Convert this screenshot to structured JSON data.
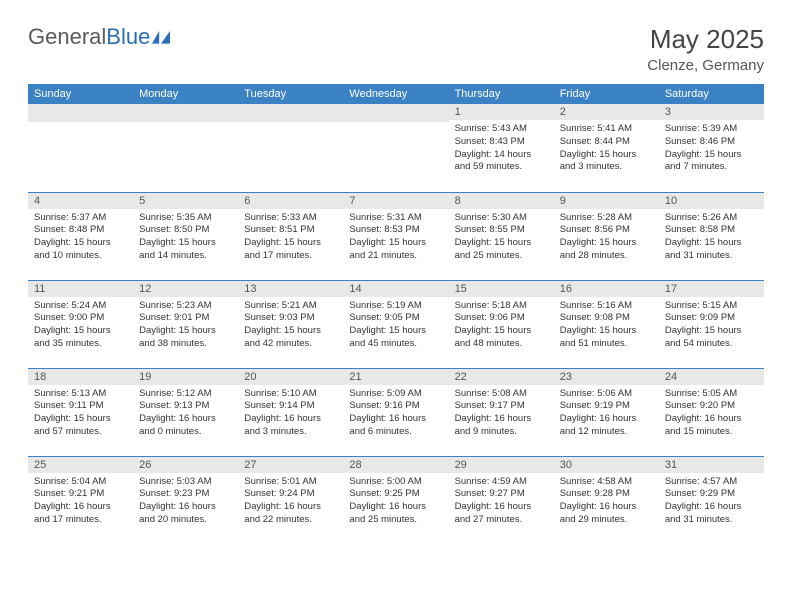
{
  "header": {
    "logo_g": "General",
    "logo_blue": "Blue",
    "month_title": "May 2025",
    "location": "Clenze, Germany"
  },
  "colors": {
    "header_bg": "#3b82c4",
    "header_text": "#ffffff",
    "daynum_bg": "#e8e8e8",
    "border": "#3b82c4",
    "logo_blue": "#2a6db8"
  },
  "day_labels": [
    "Sunday",
    "Monday",
    "Tuesday",
    "Wednesday",
    "Thursday",
    "Friday",
    "Saturday"
  ],
  "weeks": [
    [
      {
        "n": "",
        "sunrise": "",
        "sunset": "",
        "daylight": ""
      },
      {
        "n": "",
        "sunrise": "",
        "sunset": "",
        "daylight": ""
      },
      {
        "n": "",
        "sunrise": "",
        "sunset": "",
        "daylight": ""
      },
      {
        "n": "",
        "sunrise": "",
        "sunset": "",
        "daylight": ""
      },
      {
        "n": "1",
        "sunrise": "Sunrise: 5:43 AM",
        "sunset": "Sunset: 8:43 PM",
        "daylight": "Daylight: 14 hours and 59 minutes."
      },
      {
        "n": "2",
        "sunrise": "Sunrise: 5:41 AM",
        "sunset": "Sunset: 8:44 PM",
        "daylight": "Daylight: 15 hours and 3 minutes."
      },
      {
        "n": "3",
        "sunrise": "Sunrise: 5:39 AM",
        "sunset": "Sunset: 8:46 PM",
        "daylight": "Daylight: 15 hours and 7 minutes."
      }
    ],
    [
      {
        "n": "4",
        "sunrise": "Sunrise: 5:37 AM",
        "sunset": "Sunset: 8:48 PM",
        "daylight": "Daylight: 15 hours and 10 minutes."
      },
      {
        "n": "5",
        "sunrise": "Sunrise: 5:35 AM",
        "sunset": "Sunset: 8:50 PM",
        "daylight": "Daylight: 15 hours and 14 minutes."
      },
      {
        "n": "6",
        "sunrise": "Sunrise: 5:33 AM",
        "sunset": "Sunset: 8:51 PM",
        "daylight": "Daylight: 15 hours and 17 minutes."
      },
      {
        "n": "7",
        "sunrise": "Sunrise: 5:31 AM",
        "sunset": "Sunset: 8:53 PM",
        "daylight": "Daylight: 15 hours and 21 minutes."
      },
      {
        "n": "8",
        "sunrise": "Sunrise: 5:30 AM",
        "sunset": "Sunset: 8:55 PM",
        "daylight": "Daylight: 15 hours and 25 minutes."
      },
      {
        "n": "9",
        "sunrise": "Sunrise: 5:28 AM",
        "sunset": "Sunset: 8:56 PM",
        "daylight": "Daylight: 15 hours and 28 minutes."
      },
      {
        "n": "10",
        "sunrise": "Sunrise: 5:26 AM",
        "sunset": "Sunset: 8:58 PM",
        "daylight": "Daylight: 15 hours and 31 minutes."
      }
    ],
    [
      {
        "n": "11",
        "sunrise": "Sunrise: 5:24 AM",
        "sunset": "Sunset: 9:00 PM",
        "daylight": "Daylight: 15 hours and 35 minutes."
      },
      {
        "n": "12",
        "sunrise": "Sunrise: 5:23 AM",
        "sunset": "Sunset: 9:01 PM",
        "daylight": "Daylight: 15 hours and 38 minutes."
      },
      {
        "n": "13",
        "sunrise": "Sunrise: 5:21 AM",
        "sunset": "Sunset: 9:03 PM",
        "daylight": "Daylight: 15 hours and 42 minutes."
      },
      {
        "n": "14",
        "sunrise": "Sunrise: 5:19 AM",
        "sunset": "Sunset: 9:05 PM",
        "daylight": "Daylight: 15 hours and 45 minutes."
      },
      {
        "n": "15",
        "sunrise": "Sunrise: 5:18 AM",
        "sunset": "Sunset: 9:06 PM",
        "daylight": "Daylight: 15 hours and 48 minutes."
      },
      {
        "n": "16",
        "sunrise": "Sunrise: 5:16 AM",
        "sunset": "Sunset: 9:08 PM",
        "daylight": "Daylight: 15 hours and 51 minutes."
      },
      {
        "n": "17",
        "sunrise": "Sunrise: 5:15 AM",
        "sunset": "Sunset: 9:09 PM",
        "daylight": "Daylight: 15 hours and 54 minutes."
      }
    ],
    [
      {
        "n": "18",
        "sunrise": "Sunrise: 5:13 AM",
        "sunset": "Sunset: 9:11 PM",
        "daylight": "Daylight: 15 hours and 57 minutes."
      },
      {
        "n": "19",
        "sunrise": "Sunrise: 5:12 AM",
        "sunset": "Sunset: 9:13 PM",
        "daylight": "Daylight: 16 hours and 0 minutes."
      },
      {
        "n": "20",
        "sunrise": "Sunrise: 5:10 AM",
        "sunset": "Sunset: 9:14 PM",
        "daylight": "Daylight: 16 hours and 3 minutes."
      },
      {
        "n": "21",
        "sunrise": "Sunrise: 5:09 AM",
        "sunset": "Sunset: 9:16 PM",
        "daylight": "Daylight: 16 hours and 6 minutes."
      },
      {
        "n": "22",
        "sunrise": "Sunrise: 5:08 AM",
        "sunset": "Sunset: 9:17 PM",
        "daylight": "Daylight: 16 hours and 9 minutes."
      },
      {
        "n": "23",
        "sunrise": "Sunrise: 5:06 AM",
        "sunset": "Sunset: 9:19 PM",
        "daylight": "Daylight: 16 hours and 12 minutes."
      },
      {
        "n": "24",
        "sunrise": "Sunrise: 5:05 AM",
        "sunset": "Sunset: 9:20 PM",
        "daylight": "Daylight: 16 hours and 15 minutes."
      }
    ],
    [
      {
        "n": "25",
        "sunrise": "Sunrise: 5:04 AM",
        "sunset": "Sunset: 9:21 PM",
        "daylight": "Daylight: 16 hours and 17 minutes."
      },
      {
        "n": "26",
        "sunrise": "Sunrise: 5:03 AM",
        "sunset": "Sunset: 9:23 PM",
        "daylight": "Daylight: 16 hours and 20 minutes."
      },
      {
        "n": "27",
        "sunrise": "Sunrise: 5:01 AM",
        "sunset": "Sunset: 9:24 PM",
        "daylight": "Daylight: 16 hours and 22 minutes."
      },
      {
        "n": "28",
        "sunrise": "Sunrise: 5:00 AM",
        "sunset": "Sunset: 9:25 PM",
        "daylight": "Daylight: 16 hours and 25 minutes."
      },
      {
        "n": "29",
        "sunrise": "Sunrise: 4:59 AM",
        "sunset": "Sunset: 9:27 PM",
        "daylight": "Daylight: 16 hours and 27 minutes."
      },
      {
        "n": "30",
        "sunrise": "Sunrise: 4:58 AM",
        "sunset": "Sunset: 9:28 PM",
        "daylight": "Daylight: 16 hours and 29 minutes."
      },
      {
        "n": "31",
        "sunrise": "Sunrise: 4:57 AM",
        "sunset": "Sunset: 9:29 PM",
        "daylight": "Daylight: 16 hours and 31 minutes."
      }
    ]
  ]
}
